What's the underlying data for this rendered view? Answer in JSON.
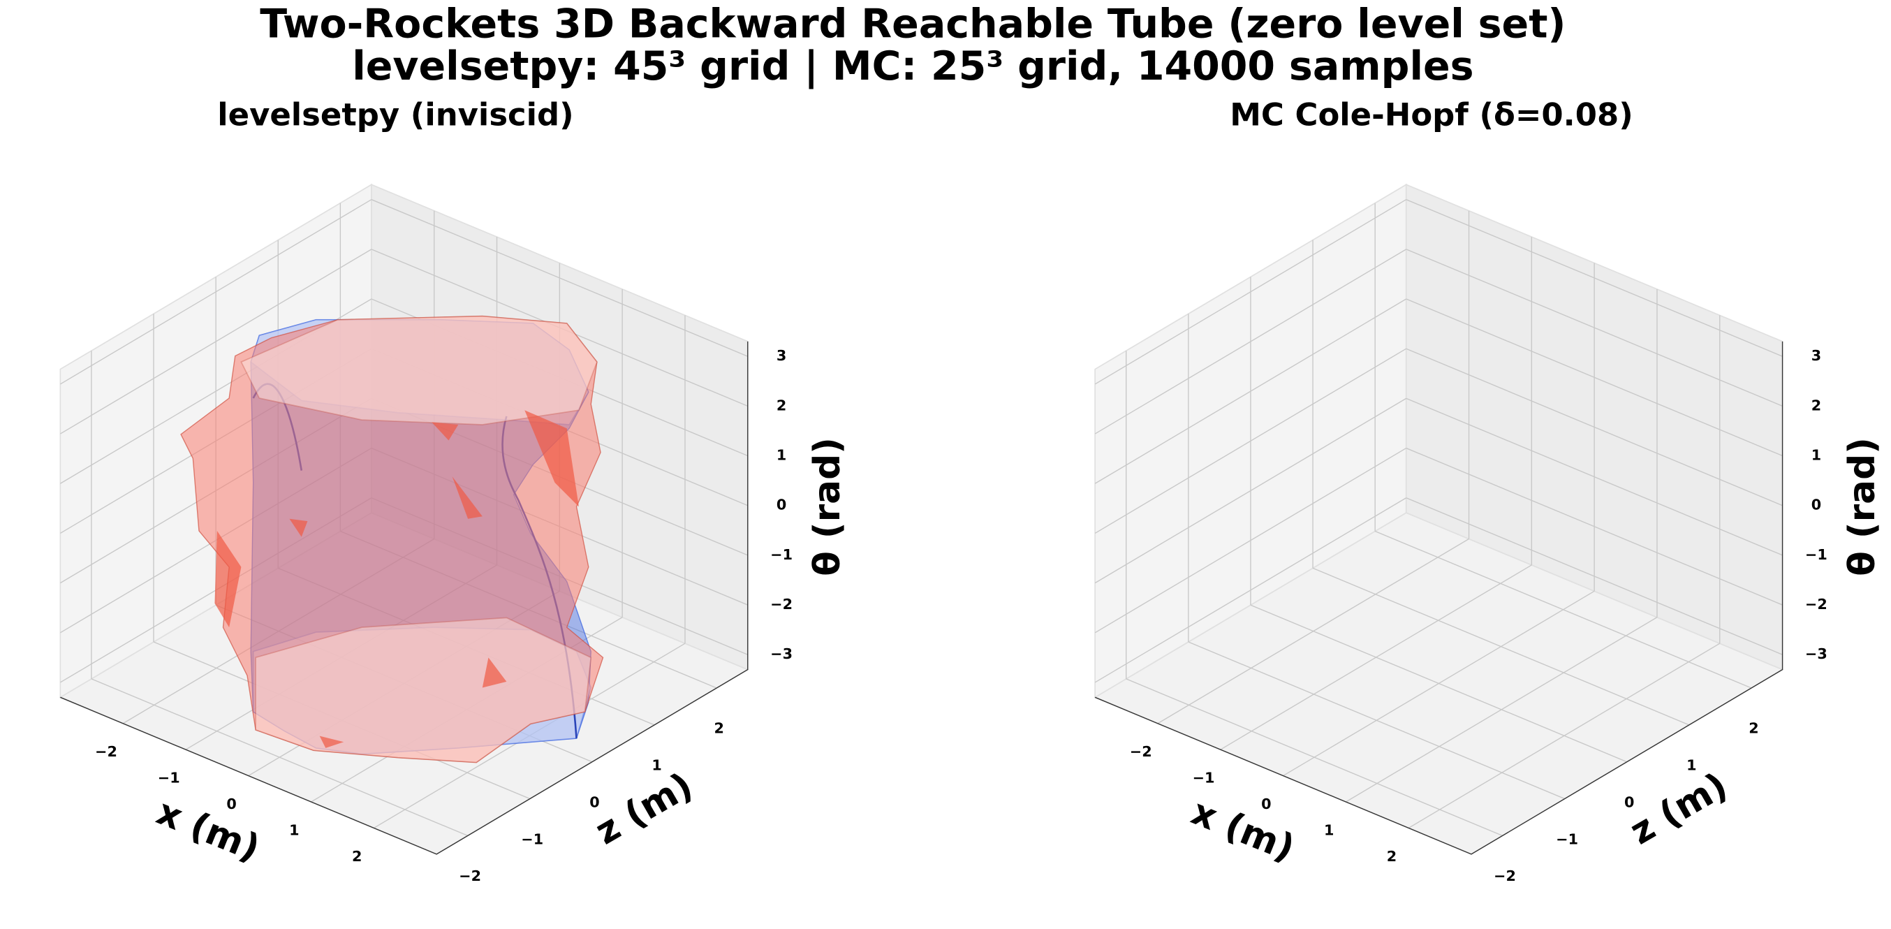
{
  "title": "Two-Rockets 3D Backward Reachable Tube (zero level set)",
  "subtitle": "levelsetpy: 45³ grid | MC: 25³ grid, 14000 samples",
  "chart_data": [
    {
      "type": "surface3d",
      "title": "levelsetpy (inviscid)",
      "color": "#4169e1",
      "xlabel": "x (m)",
      "ylabel": "z (m)",
      "zlabel": "θ (rad)",
      "xlim": [
        -3,
        3
      ],
      "ylim": [
        -2.5,
        2.5
      ],
      "zlim": [
        -3.3,
        3.3
      ],
      "xticks": [
        {
          "value": -2,
          "label": "−2"
        },
        {
          "value": -1,
          "label": "−1"
        },
        0,
        1,
        2
      ],
      "yticks": [
        {
          "value": -2,
          "label": "−2"
        },
        {
          "value": -1,
          "label": "−1"
        },
        0,
        1,
        2
      ],
      "zticks": [
        {
          "value": -3,
          "label": "−3"
        },
        {
          "value": -2,
          "label": "−2"
        },
        {
          "value": -1,
          "label": "−1"
        },
        0,
        1,
        2,
        3
      ]
    },
    {
      "type": "surface3d",
      "title": "MC Cole-Hopf (δ=0.08)",
      "color": "#fa8072",
      "xlabel": "x (m)",
      "ylabel": "z (m)",
      "zlabel": "θ (rad)",
      "xlim": [
        -3,
        3
      ],
      "ylim": [
        -2.5,
        2.5
      ],
      "zlim": [
        -3.3,
        3.3
      ],
      "xticks": [
        {
          "value": -2,
          "label": "−2"
        },
        {
          "value": -1,
          "label": "−1"
        },
        0,
        1,
        2
      ],
      "yticks": [
        {
          "value": -2,
          "label": "−2"
        },
        {
          "value": -1,
          "label": "−1"
        },
        0,
        1,
        2
      ],
      "zticks": [
        {
          "value": -3,
          "label": "−3"
        },
        {
          "value": -2,
          "label": "−2"
        },
        {
          "value": -1,
          "label": "−1"
        },
        0,
        1,
        2,
        3
      ]
    }
  ]
}
